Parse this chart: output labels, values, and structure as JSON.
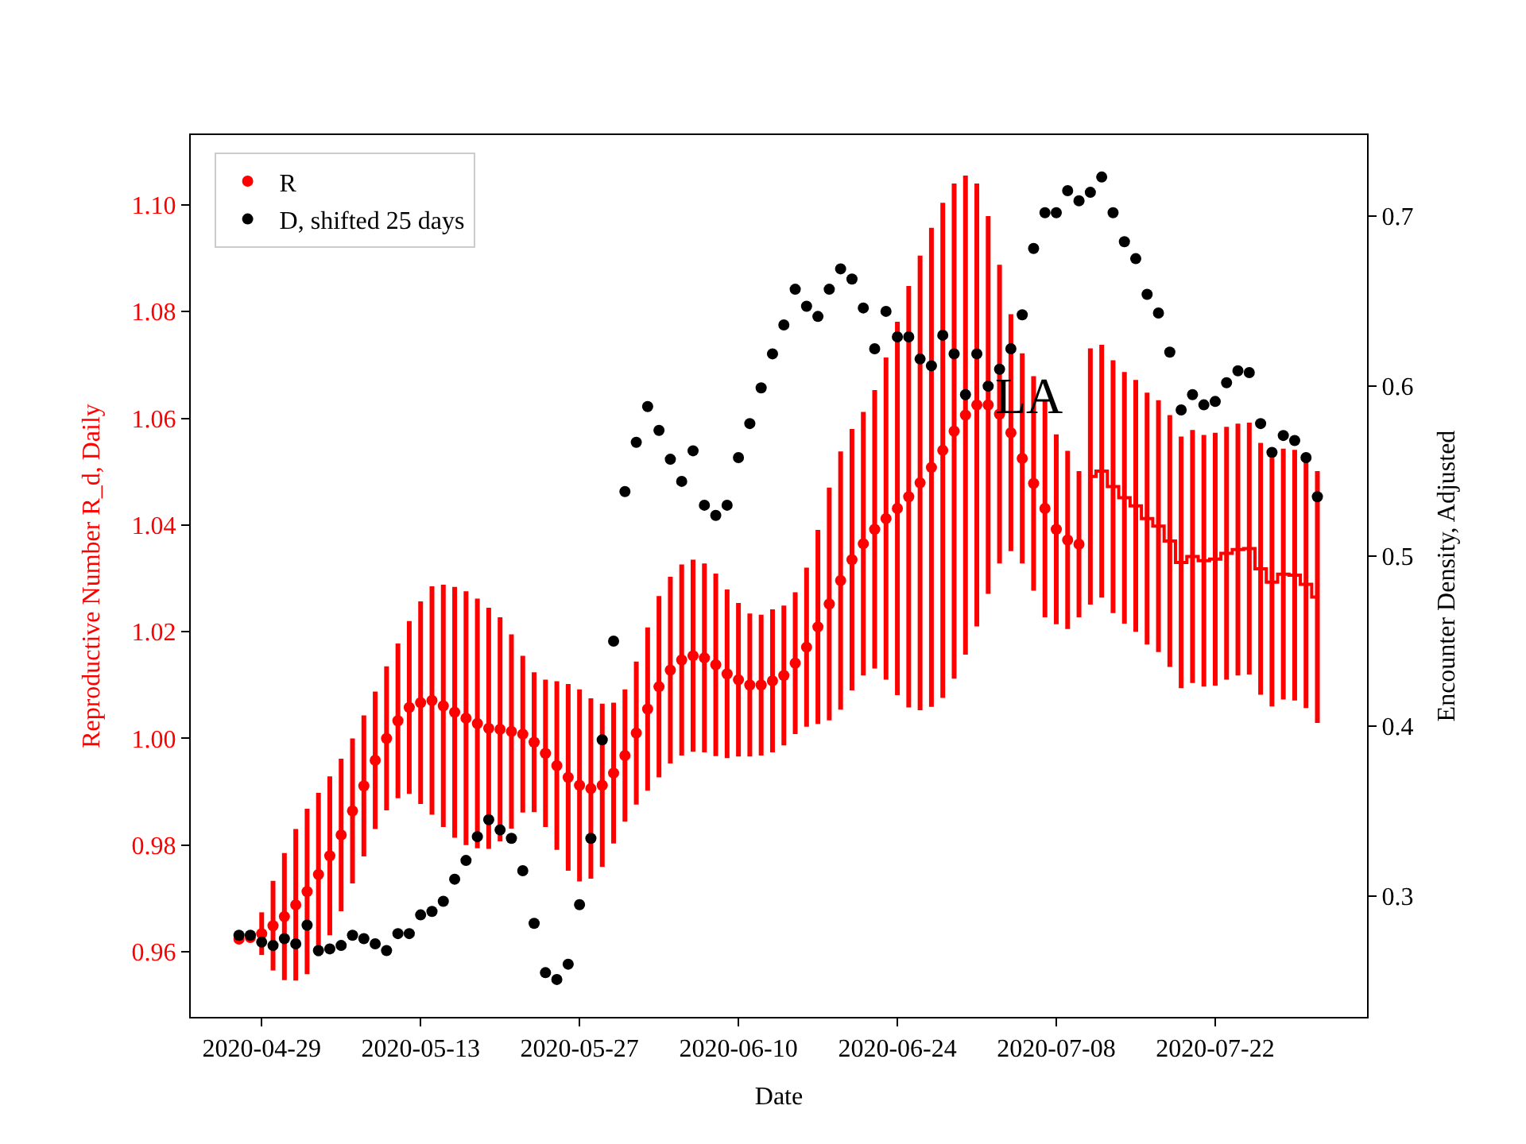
{
  "chart_data": {
    "type": "scatter",
    "xlabel": "Date",
    "ylabel": "Reproductive Number R_d, Daily",
    "y2label": "Encounter Density, Adjusted",
    "annotations": [
      "LA"
    ],
    "xlim": [
      "2020-04-22T18:00",
      "2020-08-04T09:00"
    ],
    "xticks": [
      "2020-04-29",
      "2020-05-13",
      "2020-05-27",
      "2020-06-10",
      "2020-06-24",
      "2020-07-08",
      "2020-07-22"
    ],
    "ylim": [
      0.9478,
      1.1131
    ],
    "yticks": [
      {
        "value": 0.96,
        "label": "0.96"
      },
      {
        "value": 0.98,
        "label": "0.98"
      },
      {
        "value": 1.0,
        "label": "1.00"
      },
      {
        "value": 1.02,
        "label": "1.02"
      },
      {
        "value": 1.04,
        "label": "1.04"
      },
      {
        "value": 1.06,
        "label": "1.06"
      },
      {
        "value": 1.08,
        "label": "1.08"
      },
      {
        "value": 1.1,
        "label": "1.10"
      }
    ],
    "y2lim": [
      0.229,
      0.7477
    ],
    "y2ticks": [
      0.3,
      0.4,
      0.5,
      0.6,
      0.7
    ],
    "legend": "top left",
    "series": [
      {
        "name": "R",
        "color": "#ff0000",
        "marker": "circle",
        "x": [
          "2020-04-27",
          "2020-04-28",
          "2020-04-29",
          "2020-04-30",
          "2020-05-01",
          "2020-05-02",
          "2020-05-03",
          "2020-05-04",
          "2020-05-05",
          "2020-05-06",
          "2020-05-07",
          "2020-05-08",
          "2020-05-09",
          "2020-05-10",
          "2020-05-11",
          "2020-05-12",
          "2020-05-13",
          "2020-05-14",
          "2020-05-15",
          "2020-05-16",
          "2020-05-17",
          "2020-05-18",
          "2020-05-19",
          "2020-05-20",
          "2020-05-21",
          "2020-05-22",
          "2020-05-23",
          "2020-05-24",
          "2020-05-25",
          "2020-05-26",
          "2020-05-27",
          "2020-05-28",
          "2020-05-29",
          "2020-05-30",
          "2020-05-31",
          "2020-06-01",
          "2020-06-02",
          "2020-06-03",
          "2020-06-04",
          "2020-06-05",
          "2020-06-06",
          "2020-06-07",
          "2020-06-08",
          "2020-06-09",
          "2020-06-10",
          "2020-06-11",
          "2020-06-12",
          "2020-06-13",
          "2020-06-14",
          "2020-06-15",
          "2020-06-16",
          "2020-06-17",
          "2020-06-18",
          "2020-06-19",
          "2020-06-20",
          "2020-06-21",
          "2020-06-22",
          "2020-06-23",
          "2020-06-24",
          "2020-06-25",
          "2020-06-26",
          "2020-06-27",
          "2020-06-28",
          "2020-06-29",
          "2020-06-30",
          "2020-07-01",
          "2020-07-02",
          "2020-07-03",
          "2020-07-04",
          "2020-07-05",
          "2020-07-06",
          "2020-07-07",
          "2020-07-08",
          "2020-07-09",
          "2020-07-10"
        ],
        "values": [
          0.9624,
          0.9627,
          0.9634,
          0.9649,
          0.9666,
          0.9688,
          0.9713,
          0.9745,
          0.978,
          0.9819,
          0.9864,
          0.9911,
          0.9959,
          1.0,
          1.0033,
          1.0058,
          1.0067,
          1.0071,
          1.0061,
          1.0049,
          1.0038,
          1.0028,
          1.0019,
          1.0017,
          1.0013,
          1.0008,
          0.9993,
          0.9972,
          0.9949,
          0.9927,
          0.9912,
          0.9906,
          0.9912,
          0.9935,
          0.9968,
          1.001,
          1.0055,
          1.0097,
          1.0128,
          1.0147,
          1.0155,
          1.0151,
          1.0138,
          1.0121,
          1.011,
          1.01,
          1.01,
          1.0108,
          1.0118,
          1.0141,
          1.0171,
          1.0209,
          1.0252,
          1.0296,
          1.0335,
          1.0365,
          1.0392,
          1.0412,
          1.0431,
          1.0453,
          1.0479,
          1.0508,
          1.054,
          1.0576,
          1.0606,
          1.0625,
          1.0625,
          1.0608,
          1.0573,
          1.0525,
          1.0478,
          1.0431,
          1.0392,
          1.0372,
          1.0364
        ],
        "errors": [
          null,
          null,
          0.004,
          0.0084,
          0.0119,
          0.0142,
          0.0155,
          0.0153,
          0.0149,
          0.0143,
          0.0136,
          0.0132,
          0.0129,
          0.0135,
          0.0145,
          0.0162,
          0.019,
          0.0214,
          0.0227,
          0.0235,
          0.0238,
          0.0234,
          0.0226,
          0.021,
          0.0182,
          0.0147,
          0.0131,
          0.0138,
          0.0158,
          0.0175,
          0.018,
          0.0169,
          0.0153,
          0.0132,
          0.0124,
          0.0134,
          0.0153,
          0.017,
          0.0175,
          0.0179,
          0.018,
          0.0177,
          0.0171,
          0.0158,
          0.0144,
          0.0134,
          0.0132,
          0.0134,
          0.0131,
          0.0133,
          0.0149,
          0.0182,
          0.0218,
          0.0242,
          0.0245,
          0.0247,
          0.0261,
          0.0302,
          0.035,
          0.0395,
          0.0426,
          0.0449,
          0.0464,
          0.0464,
          0.0449,
          0.0415,
          0.0354,
          0.028,
          0.0222,
          0.0197,
          0.0201,
          0.0204,
          0.0178,
          0.0167,
          0.0137
        ]
      },
      {
        "color": "#ff0000",
        "type": "step",
        "marker": "none",
        "x": [
          "2020-07-11",
          "2020-07-12",
          "2020-07-13",
          "2020-07-14",
          "2020-07-15",
          "2020-07-16",
          "2020-07-17",
          "2020-07-18",
          "2020-07-19",
          "2020-07-20",
          "2020-07-21",
          "2020-07-22",
          "2020-07-23",
          "2020-07-24",
          "2020-07-25",
          "2020-07-26",
          "2020-07-27",
          "2020-07-28",
          "2020-07-29",
          "2020-07-30",
          "2020-07-31"
        ],
        "values": [
          1.0491,
          1.0501,
          1.0472,
          1.0451,
          1.0436,
          1.0412,
          1.0398,
          1.037,
          1.033,
          1.0341,
          1.0333,
          1.0336,
          1.0347,
          1.0354,
          1.0356,
          1.0318,
          1.0293,
          1.0308,
          1.0306,
          1.0289,
          1.0265
        ],
        "errors": [
          0.024,
          0.0237,
          0.0237,
          0.0236,
          0.0236,
          0.0236,
          0.0236,
          0.0236,
          0.0236,
          0.0237,
          0.0236,
          0.0237,
          0.0237,
          0.0236,
          0.0236,
          0.0236,
          0.0233,
          0.0235,
          0.0235,
          0.0232,
          0.0236
        ]
      },
      {
        "name": "D, shifted 25 days",
        "color": "#000000",
        "marker": "circle",
        "axis": "y2",
        "x": [
          "2020-04-27",
          "2020-04-28",
          "2020-04-29",
          "2020-04-30",
          "2020-05-01",
          "2020-05-02",
          "2020-05-03",
          "2020-05-04",
          "2020-05-05",
          "2020-05-06",
          "2020-05-07",
          "2020-05-08",
          "2020-05-09",
          "2020-05-10",
          "2020-05-11",
          "2020-05-12",
          "2020-05-13",
          "2020-05-14",
          "2020-05-15",
          "2020-05-16",
          "2020-05-17",
          "2020-05-18",
          "2020-05-19",
          "2020-05-20",
          "2020-05-21",
          "2020-05-22",
          "2020-05-23",
          "2020-05-24",
          "2020-05-25",
          "2020-05-26",
          "2020-05-27",
          "2020-05-28",
          "2020-05-29",
          "2020-05-30",
          "2020-05-31",
          "2020-06-01",
          "2020-06-02",
          "2020-06-03",
          "2020-06-04",
          "2020-06-05",
          "2020-06-06",
          "2020-06-07",
          "2020-06-08",
          "2020-06-09",
          "2020-06-10",
          "2020-06-11",
          "2020-06-12",
          "2020-06-13",
          "2020-06-14",
          "2020-06-15",
          "2020-06-16",
          "2020-06-17",
          "2020-06-18",
          "2020-06-19",
          "2020-06-20",
          "2020-06-21",
          "2020-06-22",
          "2020-06-23",
          "2020-06-24",
          "2020-06-25",
          "2020-06-26",
          "2020-06-27",
          "2020-06-28",
          "2020-06-29",
          "2020-06-30",
          "2020-07-01",
          "2020-07-02",
          "2020-07-03",
          "2020-07-04",
          "2020-07-05",
          "2020-07-06",
          "2020-07-07",
          "2020-07-08",
          "2020-07-09",
          "2020-07-10",
          "2020-07-11",
          "2020-07-12",
          "2020-07-13",
          "2020-07-14",
          "2020-07-15",
          "2020-07-16",
          "2020-07-17",
          "2020-07-18",
          "2020-07-19",
          "2020-07-20",
          "2020-07-21",
          "2020-07-22",
          "2020-07-23",
          "2020-07-24",
          "2020-07-25",
          "2020-07-26",
          "2020-07-27",
          "2020-07-28",
          "2020-07-29",
          "2020-07-30",
          "2020-07-31"
        ],
        "values": [
          0.277,
          0.277,
          0.273,
          0.271,
          0.275,
          0.272,
          0.283,
          0.268,
          0.269,
          0.271,
          0.277,
          0.275,
          0.272,
          0.268,
          0.278,
          0.278,
          0.289,
          0.291,
          0.297,
          0.31,
          0.321,
          0.335,
          0.345,
          0.339,
          0.334,
          0.315,
          0.284,
          0.255,
          0.251,
          0.26,
          0.295,
          0.334,
          0.392,
          0.45,
          0.538,
          0.567,
          0.588,
          0.574,
          0.557,
          0.544,
          0.562,
          0.53,
          0.524,
          0.53,
          0.558,
          0.578,
          0.599,
          0.619,
          0.636,
          0.657,
          0.647,
          0.641,
          0.657,
          0.669,
          0.663,
          0.646,
          0.622,
          0.644,
          0.629,
          0.629,
          0.616,
          0.612,
          0.63,
          0.619,
          0.595,
          0.619,
          0.6,
          0.61,
          0.622,
          0.642,
          0.681,
          0.702,
          0.702,
          0.715,
          0.709,
          0.714,
          0.723,
          0.702,
          0.685,
          0.675,
          0.654,
          0.643,
          0.62,
          0.586,
          0.595,
          0.589,
          0.591,
          0.602,
          0.609,
          0.608,
          0.578,
          0.561,
          0.571,
          0.568,
          0.558,
          0.535
        ]
      }
    ]
  }
}
